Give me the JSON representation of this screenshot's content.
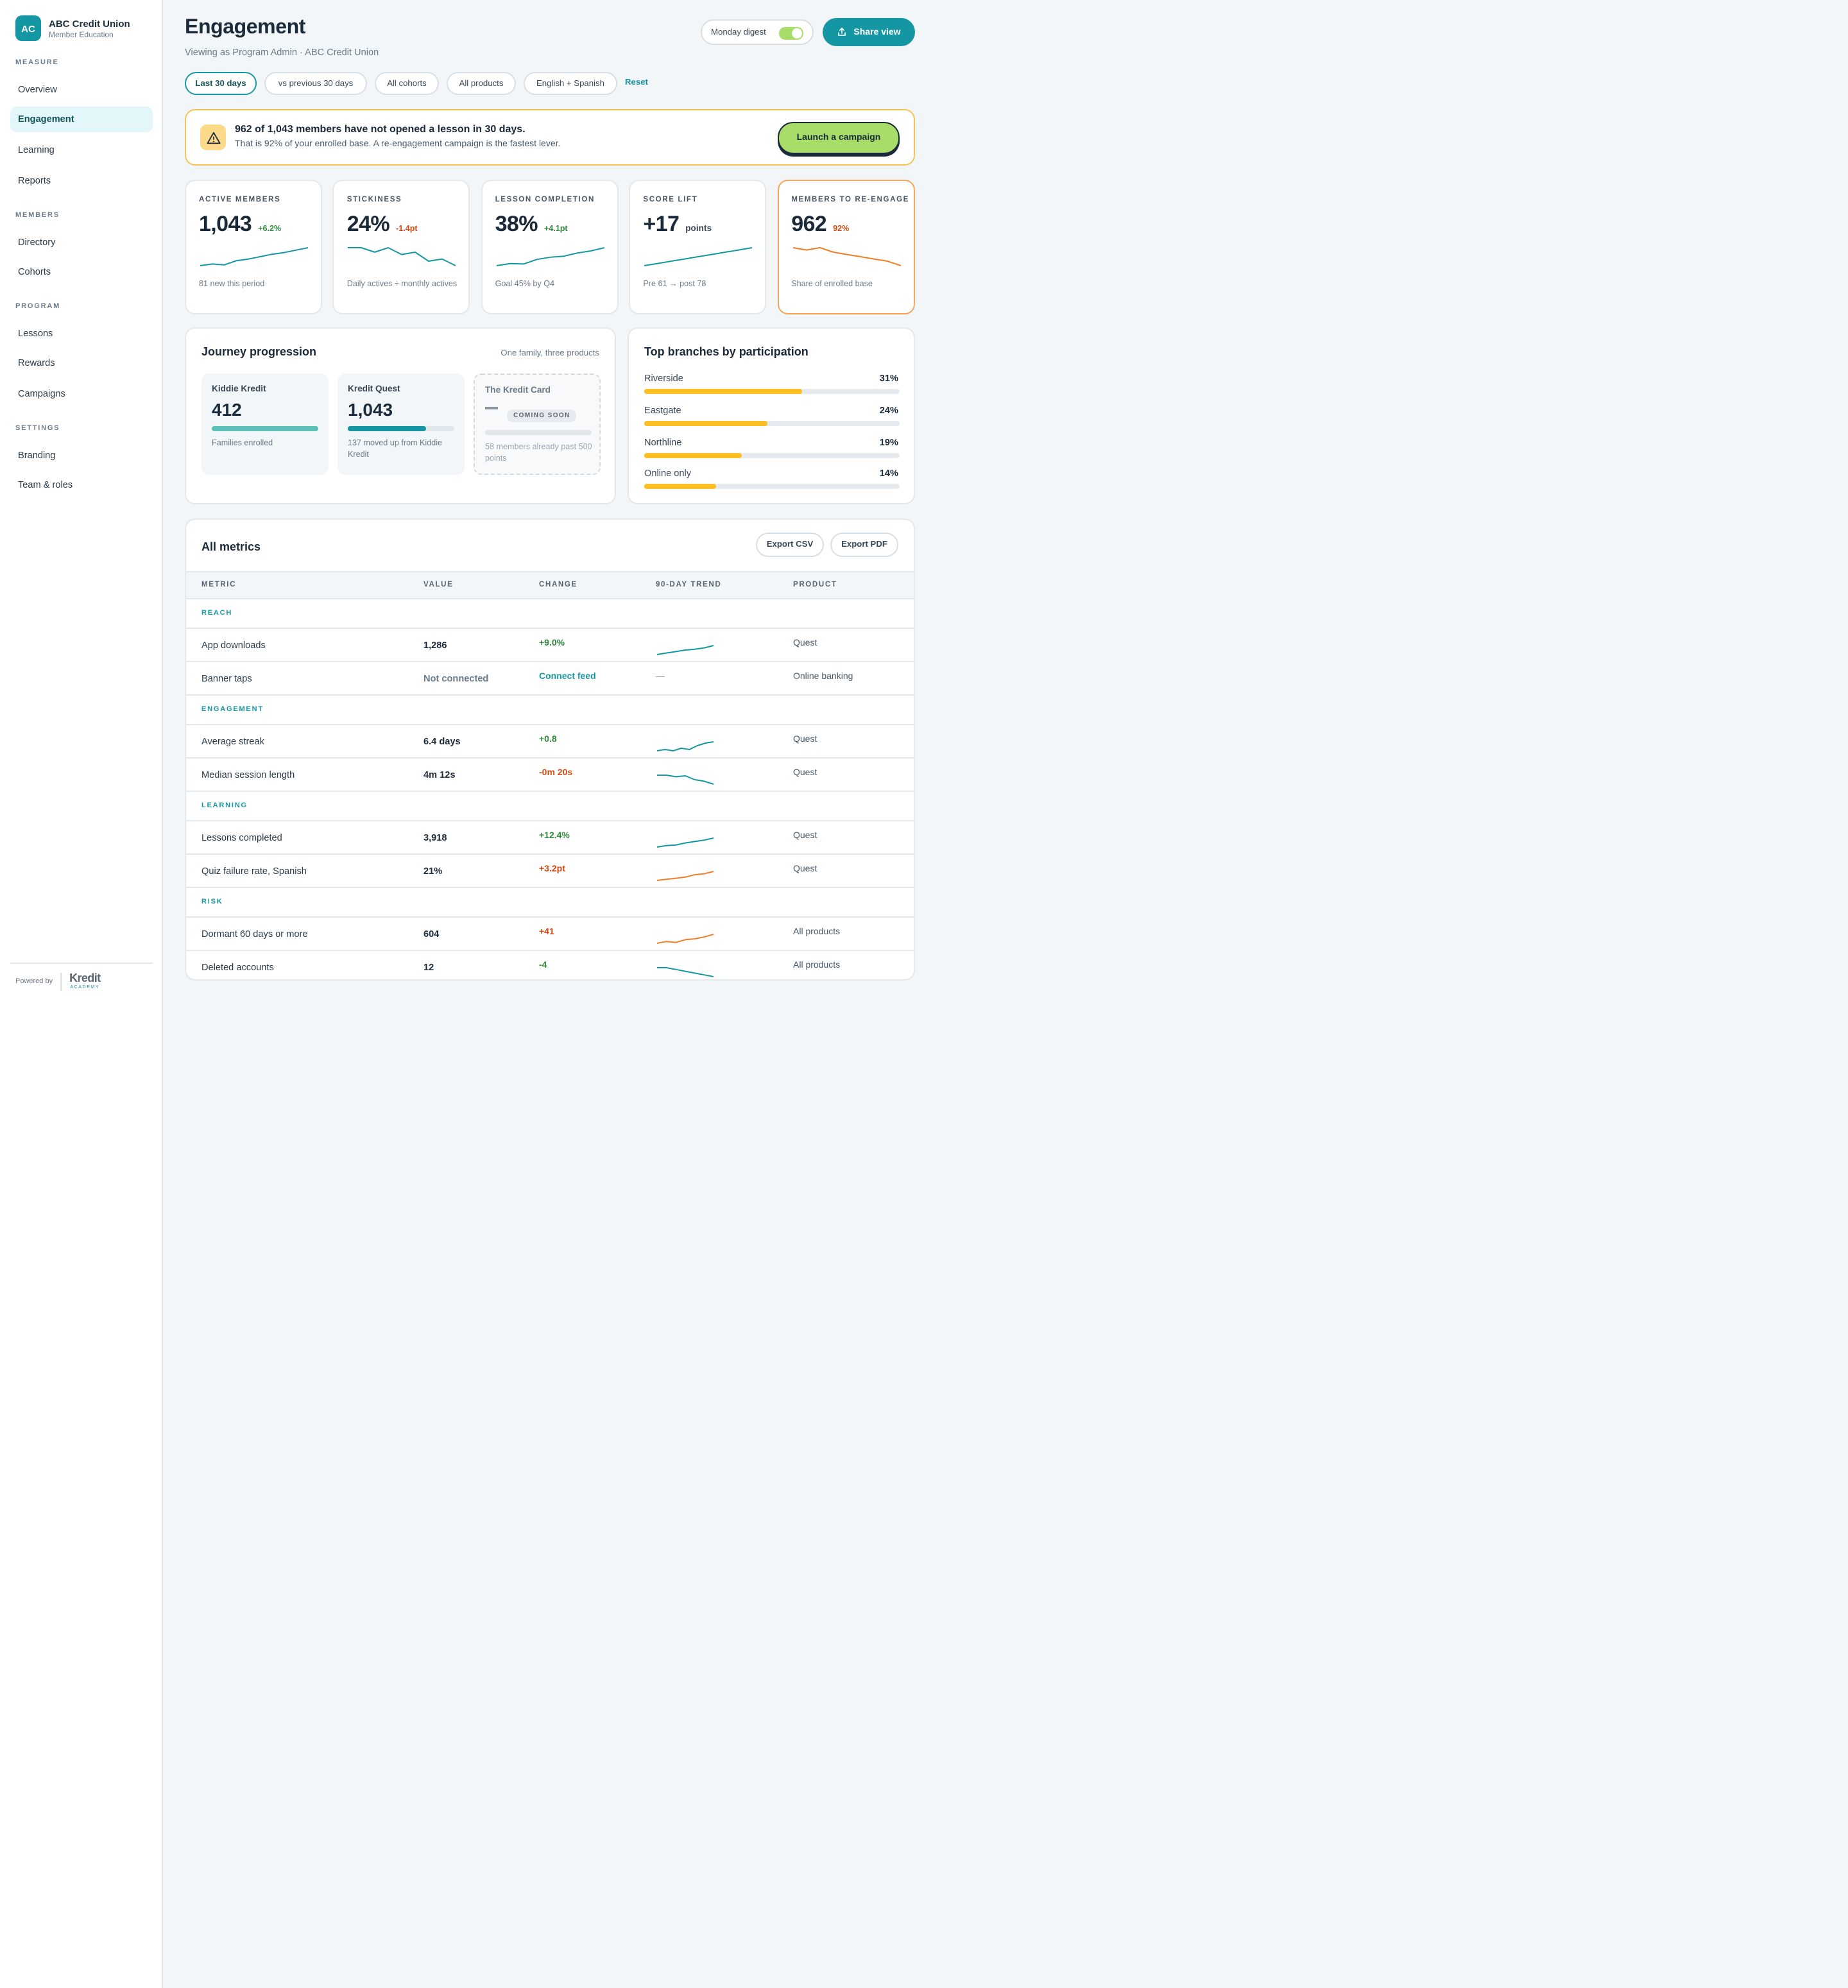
{
  "sidebar": {
    "org_initials": "AC",
    "org_name": "ABC Credit Union",
    "org_sub": "Member Education",
    "sections": [
      {
        "title": "MEASURE",
        "items": [
          "Overview",
          "Engagement",
          "Learning",
          "Reports"
        ]
      },
      {
        "title": "MEMBERS",
        "items": [
          "Directory",
          "Cohorts"
        ]
      },
      {
        "title": "PROGRAM",
        "items": [
          "Lessons",
          "Rewards",
          "Campaigns"
        ]
      },
      {
        "title": "SETTINGS",
        "items": [
          "Branding",
          "Team & roles"
        ]
      }
    ],
    "active_item": "Engagement",
    "powered_by": "Powered by",
    "powered_logo": "Kredit",
    "powered_logo_sub": "ACADEMY"
  },
  "header": {
    "title": "Engagement",
    "subtitle": "Viewing as Program Admin · ABC Credit Union",
    "digest_label": "Monday digest",
    "digest_on": true,
    "share_label": "Share view"
  },
  "filters": {
    "chips": [
      "Last 30 days",
      "vs previous 30 days",
      "All cohorts",
      "All products",
      "English + Spanish"
    ],
    "active_chip": "Last 30 days",
    "reset_label": "Reset"
  },
  "alert": {
    "title": "962 of 1,043 members have not opened a lesson in 30 days.",
    "body": "That is 92% of your enrolled base. A re-engagement campaign is the fastest lever.",
    "cta": "Launch a campaign"
  },
  "kpis": [
    {
      "label": "ACTIVE MEMBERS",
      "value": "1,043",
      "delta": "+6.2%",
      "delta_tone": "up",
      "note": "81 new this period",
      "spark": [
        3,
        4,
        3.5,
        6,
        7,
        8.5,
        10,
        11,
        12.5,
        14
      ],
      "spark_color": "#1597a3"
    },
    {
      "label": "STICKINESS",
      "value": "24%",
      "delta": "-1.4pt",
      "delta_tone": "down",
      "note": "Daily actives ÷ monthly actives",
      "spark": [
        12,
        12,
        11,
        12,
        10.5,
        11,
        9,
        9.5,
        8
      ],
      "spark_color": "#1597a3"
    },
    {
      "label": "LESSON COMPLETION",
      "value": "38%",
      "delta": "+4.1pt",
      "delta_tone": "up",
      "note": "Goal 45% by Q4",
      "spark": [
        3,
        4,
        3.8,
        6,
        7,
        7.5,
        9,
        10,
        11.5
      ],
      "spark_color": "#1597a3"
    },
    {
      "label": "SCORE LIFT",
      "value": "+17",
      "delta": "points",
      "delta_tone": "neutral",
      "note": "Pre 61 → post 78",
      "spark": [
        3,
        4,
        5,
        6,
        7,
        8,
        9,
        10,
        11
      ],
      "spark_color": "#1597a3"
    },
    {
      "label": "MEMBERS TO RE-ENGAGE",
      "value": "962",
      "delta": "92%",
      "delta_tone": "down",
      "note": "Share of enrolled base",
      "spark": [
        12,
        11.5,
        12,
        11,
        10.5,
        10,
        9.5,
        9,
        8
      ],
      "spark_color": "#f27d26"
    }
  ],
  "journey": {
    "title": "Journey progression",
    "subtitle": "One family, three products",
    "products": [
      {
        "name": "Kiddie Kredit",
        "value": "412",
        "progress": 1.0,
        "note": "Families enrolled",
        "color": "#5cc0b8"
      },
      {
        "name": "Kredit Quest",
        "value": "1,043",
        "progress": 0.74,
        "note": "137 moved up from Kiddie Kredit",
        "color": "#1597a3"
      },
      {
        "name": "The Kredit Card",
        "value": "—",
        "badge": "COMING SOON",
        "progress": 0,
        "note": "58 members already past 500 points"
      }
    ]
  },
  "branches": {
    "title": "Top branches by participation",
    "rows": [
      {
        "name": "Riverside",
        "pct": "31%",
        "value": 0.31
      },
      {
        "name": "Eastgate",
        "pct": "24%",
        "value": 0.24
      },
      {
        "name": "Northline",
        "pct": "19%",
        "value": 0.19
      },
      {
        "name": "Online only",
        "pct": "14%",
        "value": 0.14
      }
    ]
  },
  "metrics": {
    "title": "All metrics",
    "export_csv": "Export CSV",
    "export_pdf": "Export PDF",
    "columns": [
      "METRIC",
      "VALUE",
      "CHANGE",
      "90-DAY TREND",
      "PRODUCT"
    ],
    "groups": [
      {
        "name": "REACH",
        "rows": [
          {
            "metric": "App downloads",
            "value": "1,286",
            "change": "+9.0%",
            "tone": "up",
            "trend": [
              2,
              3,
              4,
              5,
              5.5,
              6.5,
              8
            ],
            "trend_color": "#1597a3",
            "product": "Quest"
          },
          {
            "metric": "Banner taps",
            "value": "Not connected",
            "change": "Connect feed",
            "tone": "link",
            "trend": null,
            "trend_text": "—",
            "product": "Online banking"
          }
        ]
      },
      {
        "name": "ENGAGEMENT",
        "rows": [
          {
            "metric": "Average streak",
            "value": "6.4 days",
            "change": "+0.8",
            "tone": "up",
            "trend": [
              3,
              3.5,
              3,
              4,
              3.5,
              5,
              6,
              6.5
            ],
            "trend_color": "#1597a3",
            "product": "Quest"
          },
          {
            "metric": "Median session length",
            "value": "4m 12s",
            "change": "-0m 20s",
            "tone": "down",
            "trend": [
              7,
              7,
              6.5,
              6.8,
              5.5,
              5,
              4
            ],
            "trend_color": "#1597a3",
            "product": "Quest"
          }
        ]
      },
      {
        "name": "LEARNING",
        "rows": [
          {
            "metric": "Lessons completed",
            "value": "3,918",
            "change": "+12.4%",
            "tone": "up",
            "trend": [
              2,
              3,
              3.5,
              5,
              6,
              7,
              8.5
            ],
            "trend_color": "#1597a3",
            "product": "Quest"
          },
          {
            "metric": "Quiz failure rate, Spanish",
            "value": "21%",
            "change": "+3.2pt",
            "tone": "down",
            "trend": [
              2,
              2.5,
              3,
              3.5,
              4.5,
              5,
              6
            ],
            "trend_color": "#f27d26",
            "product": "Quest"
          },
          {
            "metric": "_placeholder_",
            "skip": true
          }
        ]
      },
      {
        "name": "RISK",
        "rows": [
          {
            "metric": "Dormant 60 days or more",
            "value": "604",
            "change": "+41",
            "tone": "down",
            "trend": [
              2,
              3,
              2.5,
              4,
              4.5,
              5.5,
              7
            ],
            "trend_color": "#f27d26",
            "product": "All products"
          },
          {
            "metric": "Deleted accounts",
            "value": "12",
            "change": "-4",
            "tone": "up",
            "trend": [
              7,
              7,
              6.5,
              6,
              5.5,
              5,
              4.5
            ],
            "trend_color": "#1597a3",
            "product": "All products"
          }
        ]
      }
    ]
  },
  "colors": {
    "accent": "#1597a3",
    "up": "#2e8b3a",
    "down": "#d9480f",
    "lime": "#a8dd6a",
    "amber": "#fbbf24"
  }
}
